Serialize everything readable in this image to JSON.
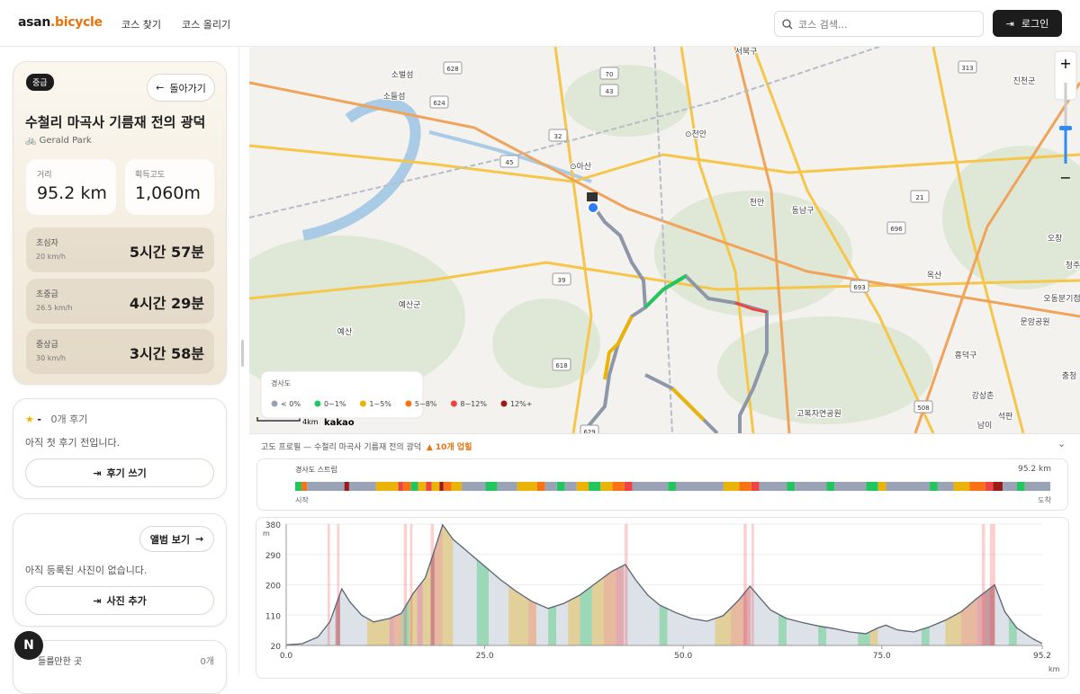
{
  "header": {
    "logo_main": "asan",
    "logo_accent": ".bicycle",
    "nav": [
      "코스 찾기",
      "코스 올리기"
    ],
    "search_placeholder": "코스 검색...",
    "login": "로그인"
  },
  "course": {
    "level": "중급",
    "back": "돌아가기",
    "title": "수철리 마곡사 기름재 전의 광덕",
    "author": "Gerald Park",
    "stats": [
      {
        "label": "거리",
        "value": "95.2 km"
      },
      {
        "label": "획득고도",
        "value": "1,060m"
      }
    ],
    "times": [
      {
        "level": "초심자",
        "speed": "20 km/h",
        "time": "5시간 57분"
      },
      {
        "level": "초중급",
        "speed": "26.5 km/h",
        "time": "4시간 29분"
      },
      {
        "level": "중상급",
        "speed": "30 km/h",
        "time": "3시간 58분"
      }
    ]
  },
  "reviews": {
    "rating": "-",
    "count": "0개 후기",
    "empty": "아직 첫 후기 전입니다.",
    "button": "후기 쓰기"
  },
  "photos": {
    "album": "앨범 보기",
    "empty": "아직 등록된 사진이 없습니다.",
    "button": "사진 추가"
  },
  "places": {
    "label": "들를만한 곳",
    "count": "0개"
  },
  "map": {
    "labels": [
      "서북구",
      "소벌섬",
      "소들섬",
      "⊙아산",
      "⊙천안",
      "예산군",
      "예산",
      "천안",
      "동남구",
      "진천군",
      "오창",
      "청주",
      "옥산",
      "문암공원",
      "흥덕구",
      "오동분기점",
      "고복자연공원",
      "강상촌",
      "석판",
      "남이",
      "충청"
    ],
    "road_numbers": [
      "628",
      "70",
      "624",
      "43",
      "32",
      "45",
      "39",
      "618",
      "629",
      "693",
      "696",
      "21",
      "313",
      "508"
    ],
    "scale": "4km",
    "brand": "kakao",
    "legend": {
      "title": "경사도",
      "items": [
        {
          "label": "< 0%",
          "color": "#9aa3b5"
        },
        {
          "label": "0~1%",
          "color": "#22c55e"
        },
        {
          "label": "1~5%",
          "color": "#eab308"
        },
        {
          "label": "5~8%",
          "color": "#f97316"
        },
        {
          "label": "8~12%",
          "color": "#ef4444"
        },
        {
          "label": "12%+",
          "color": "#991b1b"
        }
      ]
    }
  },
  "profile": {
    "title": "고도 프로필 — 수철리 마곡사 기름재 전의 광덕",
    "uphills": "▲ 10개 업힐",
    "strip": {
      "title": "경사도 스트립",
      "distance": "95.2 km",
      "start": "시작",
      "end": "도착",
      "segments": [
        {
          "from": 0,
          "to": 0.8,
          "grade": 1
        },
        {
          "from": 0.8,
          "to": 1.5,
          "grade": 3
        },
        {
          "from": 1.5,
          "to": 6.2,
          "grade": 0
        },
        {
          "from": 6.2,
          "to": 6.8,
          "grade": 5
        },
        {
          "from": 6.8,
          "to": 10.2,
          "grade": 0
        },
        {
          "from": 10.2,
          "to": 13,
          "grade": 2
        },
        {
          "from": 13,
          "to": 13.6,
          "grade": 4
        },
        {
          "from": 13.6,
          "to": 14.6,
          "grade": 3
        },
        {
          "from": 14.6,
          "to": 15.5,
          "grade": 1
        },
        {
          "from": 15.5,
          "to": 16.5,
          "grade": 2
        },
        {
          "from": 16.5,
          "to": 17.2,
          "grade": 4
        },
        {
          "from": 17.2,
          "to": 18.2,
          "grade": 2
        },
        {
          "from": 18.2,
          "to": 18.7,
          "grade": 5
        },
        {
          "from": 18.7,
          "to": 19.7,
          "grade": 3
        },
        {
          "from": 19.7,
          "to": 21,
          "grade": 2
        },
        {
          "from": 21,
          "to": 24,
          "grade": 0
        },
        {
          "from": 24,
          "to": 25.5,
          "grade": 1
        },
        {
          "from": 25.5,
          "to": 28,
          "grade": 0
        },
        {
          "from": 28,
          "to": 30.5,
          "grade": 2
        },
        {
          "from": 30.5,
          "to": 31.5,
          "grade": 3
        },
        {
          "from": 31.5,
          "to": 33,
          "grade": 0
        },
        {
          "from": 33,
          "to": 34,
          "grade": 1
        },
        {
          "from": 34,
          "to": 35.5,
          "grade": 0
        },
        {
          "from": 35.5,
          "to": 37,
          "grade": 2
        },
        {
          "from": 37,
          "to": 38.5,
          "grade": 1
        },
        {
          "from": 38.5,
          "to": 40,
          "grade": 2
        },
        {
          "from": 40,
          "to": 41.5,
          "grade": 3
        },
        {
          "from": 41.5,
          "to": 42.5,
          "grade": 4
        },
        {
          "from": 42.5,
          "to": 47,
          "grade": 0
        },
        {
          "from": 47,
          "to": 48,
          "grade": 1
        },
        {
          "from": 48,
          "to": 54,
          "grade": 0
        },
        {
          "from": 54,
          "to": 56,
          "grade": 2
        },
        {
          "from": 56,
          "to": 57.5,
          "grade": 3
        },
        {
          "from": 57.5,
          "to": 58.5,
          "grade": 4
        },
        {
          "from": 58.5,
          "to": 62,
          "grade": 0
        },
        {
          "from": 62,
          "to": 63,
          "grade": 1
        },
        {
          "from": 63,
          "to": 67,
          "grade": 0
        },
        {
          "from": 67,
          "to": 68,
          "grade": 1
        },
        {
          "from": 68,
          "to": 72,
          "grade": 0
        },
        {
          "from": 72,
          "to": 73.5,
          "grade": 1
        },
        {
          "from": 73.5,
          "to": 74.5,
          "grade": 2
        },
        {
          "from": 74.5,
          "to": 80,
          "grade": 0
        },
        {
          "from": 80,
          "to": 81,
          "grade": 1
        },
        {
          "from": 81,
          "to": 83,
          "grade": 0
        },
        {
          "from": 83,
          "to": 85,
          "grade": 2
        },
        {
          "from": 85,
          "to": 87,
          "grade": 3
        },
        {
          "from": 87,
          "to": 88,
          "grade": 4
        },
        {
          "from": 88,
          "to": 89.2,
          "grade": 5
        },
        {
          "from": 89.2,
          "to": 91,
          "grade": 0
        },
        {
          "from": 91,
          "to": 92,
          "grade": 1
        },
        {
          "from": 92,
          "to": 95.2,
          "grade": 0
        }
      ]
    }
  },
  "chart_data": {
    "type": "area",
    "x_label": "km",
    "y_label": "m",
    "x": [
      0,
      2,
      4,
      5.5,
      7,
      8,
      9.5,
      11,
      13,
      14.5,
      16,
      17.5,
      18.5,
      19.7,
      21,
      23,
      25,
      27,
      29,
      31,
      33,
      35,
      37,
      39,
      41,
      42.7,
      44,
      45.5,
      47,
      49,
      51,
      53,
      55,
      57,
      58.4,
      59.5,
      61,
      63,
      65,
      67,
      69,
      71,
      73,
      74.5,
      75.5,
      77,
      79,
      81,
      83,
      85,
      87,
      89.2,
      90.5,
      92,
      94,
      95.2
    ],
    "values": [
      22,
      25,
      45,
      90,
      188,
      150,
      110,
      90,
      100,
      115,
      175,
      220,
      290,
      378,
      335,
      295,
      255,
      215,
      180,
      150,
      130,
      145,
      170,
      205,
      240,
      260,
      215,
      170,
      140,
      118,
      100,
      92,
      108,
      155,
      196,
      165,
      125,
      100,
      88,
      78,
      70,
      60,
      55,
      72,
      80,
      66,
      60,
      75,
      95,
      120,
      160,
      200,
      120,
      72,
      40,
      26
    ],
    "color": "#5b6474",
    "xlim": [
      0,
      95.2
    ],
    "ylim": [
      20,
      380
    ],
    "xticks": [
      {
        "value": 0,
        "label": "0.0"
      },
      {
        "value": 25,
        "label": "25.0"
      },
      {
        "value": 50,
        "label": "50.0"
      },
      {
        "value": 75,
        "label": "75.0"
      },
      95.2
    ],
    "yticks": [
      20,
      110,
      200,
      290,
      380
    ],
    "grid": true,
    "uphill_bands": [
      {
        "from": 5.2,
        "to": 5.5
      },
      {
        "from": 6.4,
        "to": 6.7
      },
      {
        "from": 14.8,
        "to": 15.2
      },
      {
        "from": 15.6,
        "to": 15.9
      },
      {
        "from": 18.2,
        "to": 18.6
      },
      {
        "from": 42.6,
        "to": 43
      },
      {
        "from": 57.6,
        "to": 58
      },
      {
        "from": 58.6,
        "to": 58.9
      },
      {
        "from": 87.6,
        "to": 88
      },
      {
        "from": 88.6,
        "to": 89.3
      }
    ]
  }
}
